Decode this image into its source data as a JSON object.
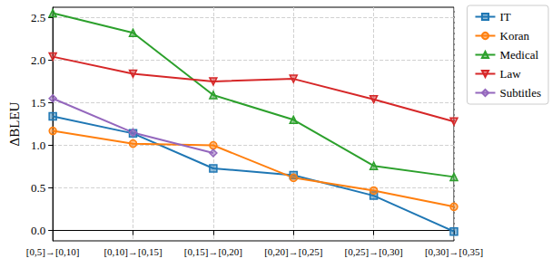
{
  "chart_data": {
    "type": "line",
    "y_label": "ΔBLEU",
    "categories": [
      "[0,5]→[0,10]",
      "[0,10]→[0,15]",
      "[0,15]→[0,20]",
      "[0,20]→[0,25]",
      "[0,25]→[0,30]",
      "[0,30]→[0,35]"
    ],
    "series": [
      {
        "name": "IT",
        "color": "#1f77b4",
        "marker": "square",
        "values": [
          1.34,
          1.14,
          0.73,
          0.65,
          0.41,
          -0.01
        ]
      },
      {
        "name": "Koran",
        "color": "#ff7f0e",
        "marker": "circle",
        "values": [
          1.17,
          1.02,
          1.0,
          0.62,
          0.47,
          0.28
        ]
      },
      {
        "name": "Medical",
        "color": "#2ca02c",
        "marker": "triangle_up",
        "values": [
          2.55,
          2.32,
          1.59,
          1.3,
          0.76,
          0.63
        ]
      },
      {
        "name": "Law",
        "color": "#d62728",
        "marker": "triangle_down",
        "values": [
          2.04,
          1.84,
          1.75,
          1.78,
          1.54,
          1.28
        ]
      },
      {
        "name": "Subtitles",
        "color": "#9467bd",
        "marker": "diamond",
        "values": [
          1.55,
          1.15,
          0.91,
          null,
          null,
          null
        ]
      }
    ],
    "ylim": [
      -0.12,
      2.62
    ],
    "yticks": [
      {
        "value": 0,
        "label": "0.0"
      },
      {
        "value": 0.5,
        "label": "0.5"
      },
      {
        "value": 1,
        "label": "1.0"
      },
      {
        "value": 1.5,
        "label": "1.5"
      },
      {
        "value": 2,
        "label": "2.0"
      },
      {
        "value": 2.5,
        "label": "2.5"
      }
    ],
    "grid": true,
    "legend": "upper right"
  }
}
